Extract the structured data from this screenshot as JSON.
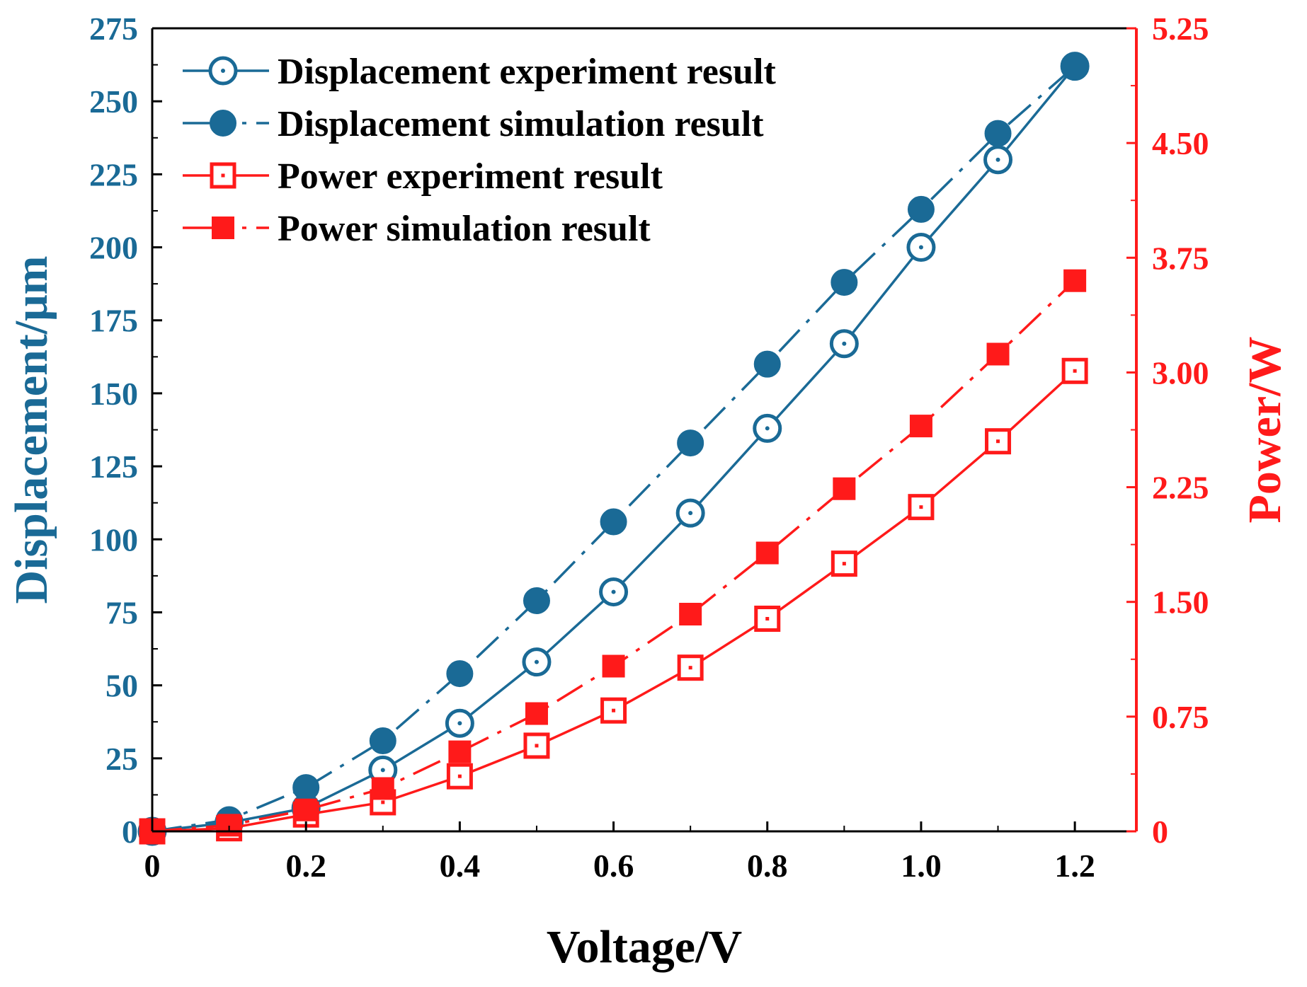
{
  "colors": {
    "blue": "#1a6a96",
    "red": "#ff1a1a",
    "black": "#000000"
  },
  "chart_data": {
    "type": "line",
    "title": "",
    "xlabel": "Voltage/V",
    "ylabel": "Displacement/μm",
    "y2label": "Power/W",
    "xlim": [
      0,
      1.28
    ],
    "ylim": [
      0,
      275
    ],
    "y2lim": [
      0,
      5.25
    ],
    "xticks": [
      0,
      0.2,
      0.4,
      0.6,
      0.8,
      1.0,
      1.2
    ],
    "xtick_labels": [
      "0",
      "0.2",
      "0.4",
      "0.6",
      "0.8",
      "1.0",
      "1.2"
    ],
    "yticks": [
      0,
      25,
      50,
      75,
      100,
      125,
      150,
      175,
      200,
      225,
      250,
      275
    ],
    "ytick_labels": [
      "0",
      "25",
      "50",
      "75",
      "100",
      "125",
      "150",
      "175",
      "200",
      "225",
      "250",
      "275"
    ],
    "y2ticks": [
      0,
      0.75,
      1.5,
      2.25,
      3.0,
      3.75,
      4.5,
      5.25
    ],
    "y2tick_labels": [
      "0",
      "0.75",
      "1.50",
      "2.25",
      "3.00",
      "3.75",
      "4.50",
      "5.25"
    ],
    "grid": false,
    "legend_position": "top-left",
    "x": [
      0,
      0.1,
      0.2,
      0.3,
      0.4,
      0.5,
      0.6,
      0.7,
      0.8,
      0.9,
      1.0,
      1.1,
      1.2
    ],
    "series": [
      {
        "name": "Displacement experiment result",
        "axis": "left",
        "marker": "circle-open",
        "line": "solid",
        "color": "#1a6a96",
        "values": [
          0,
          3,
          8,
          21,
          37,
          58,
          82,
          109,
          138,
          167,
          200,
          230,
          262
        ]
      },
      {
        "name": "Displacement simulation result",
        "axis": "left",
        "marker": "circle-filled",
        "line": "dashdot",
        "color": "#1a6a96",
        "values": [
          0,
          4,
          15,
          31,
          54,
          79,
          106,
          133,
          160,
          188,
          213,
          239,
          262
        ]
      },
      {
        "name": "Power experiment result",
        "axis": "right",
        "marker": "square-open",
        "line": "solid",
        "color": "#ff1a1a",
        "values": [
          0,
          0.02,
          0.11,
          0.19,
          0.36,
          0.56,
          0.79,
          1.07,
          1.39,
          1.75,
          2.12,
          2.55,
          3.01
        ]
      },
      {
        "name": "Power simulation result",
        "axis": "right",
        "marker": "square-filled",
        "line": "dashdot",
        "color": "#ff1a1a",
        "values": [
          0,
          0.04,
          0.14,
          0.28,
          0.52,
          0.77,
          1.08,
          1.42,
          1.82,
          2.24,
          2.65,
          3.12,
          3.6
        ]
      }
    ]
  }
}
